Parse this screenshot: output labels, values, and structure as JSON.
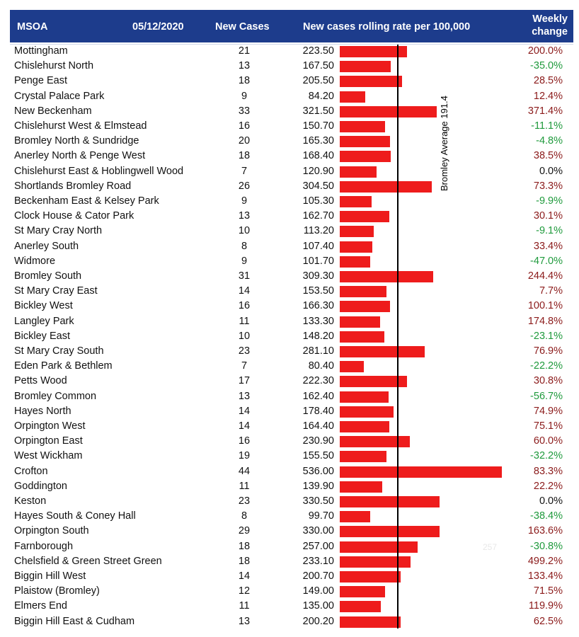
{
  "header": {
    "msoa": "MSOA",
    "date": "05/12/2020",
    "new_cases": "New Cases",
    "rate": "New cases rolling rate per 100,000",
    "weekly": "Weekly\nchange"
  },
  "colors": {
    "header_bg": "#1d3c8c",
    "bar": "#ee1c1c",
    "increase": "#8b1a1a",
    "decrease": "#1f9a3c"
  },
  "chart_data": {
    "type": "bar",
    "orientation": "horizontal",
    "reference_line": {
      "label": "Bromley Average 191.4",
      "value": 191.4
    },
    "stray_label": "257",
    "xlim": [
      0,
      540
    ],
    "columns": [
      "MSOA",
      "New Cases",
      "New cases rolling rate per 100,000",
      "Weekly change"
    ],
    "rows": [
      {
        "name": "Mottingham",
        "cases": "21",
        "rate": "223.50",
        "change": "200.0%"
      },
      {
        "name": "Chislehurst North",
        "cases": "13",
        "rate": "167.50",
        "change": "-35.0%"
      },
      {
        "name": "Penge East",
        "cases": "18",
        "rate": "205.50",
        "change": "28.5%"
      },
      {
        "name": "Crystal Palace Park",
        "cases": "9",
        "rate": "84.20",
        "change": "12.4%"
      },
      {
        "name": "New Beckenham",
        "cases": "33",
        "rate": "321.50",
        "change": "371.4%"
      },
      {
        "name": "Chislehurst West & Elmstead",
        "cases": "16",
        "rate": "150.70",
        "change": "-11.1%"
      },
      {
        "name": "Bromley North & Sundridge",
        "cases": "20",
        "rate": "165.30",
        "change": "-4.8%"
      },
      {
        "name": "Anerley North & Penge West",
        "cases": "18",
        "rate": "168.40",
        "change": "38.5%"
      },
      {
        "name": "Chislehurst East & Hoblingwell Wood",
        "cases": "7",
        "rate": "120.90",
        "change": "0.0%"
      },
      {
        "name": "Shortlands Bromley Road",
        "cases": "26",
        "rate": "304.50",
        "change": "73.3%"
      },
      {
        "name": "Beckenham East & Kelsey Park",
        "cases": "9",
        "rate": "105.30",
        "change": "-9.9%"
      },
      {
        "name": "Clock House & Cator Park",
        "cases": "13",
        "rate": "162.70",
        "change": "30.1%"
      },
      {
        "name": "St Mary Cray North",
        "cases": "10",
        "rate": "113.20",
        "change": "-9.1%"
      },
      {
        "name": "Anerley South",
        "cases": "8",
        "rate": "107.40",
        "change": "33.4%"
      },
      {
        "name": "Widmore",
        "cases": "9",
        "rate": "101.70",
        "change": "-47.0%"
      },
      {
        "name": "Bromley South",
        "cases": "31",
        "rate": "309.30",
        "change": "244.4%"
      },
      {
        "name": "St Mary Cray East",
        "cases": "14",
        "rate": "153.50",
        "change": "7.7%"
      },
      {
        "name": "Bickley West",
        "cases": "16",
        "rate": "166.30",
        "change": "100.1%"
      },
      {
        "name": "Langley Park",
        "cases": "11",
        "rate": "133.30",
        "change": "174.8%"
      },
      {
        "name": "Bickley East",
        "cases": "10",
        "rate": "148.20",
        "change": "-23.1%"
      },
      {
        "name": "St Mary Cray South",
        "cases": "23",
        "rate": "281.10",
        "change": "76.9%"
      },
      {
        "name": "Eden Park & Bethlem",
        "cases": "7",
        "rate": "80.40",
        "change": "-22.2%"
      },
      {
        "name": "Petts Wood",
        "cases": "17",
        "rate": "222.30",
        "change": "30.8%"
      },
      {
        "name": "Bromley Common",
        "cases": "13",
        "rate": "162.40",
        "change": "-56.7%"
      },
      {
        "name": "Hayes North",
        "cases": "14",
        "rate": "178.40",
        "change": "74.9%"
      },
      {
        "name": "Orpington West",
        "cases": "14",
        "rate": "164.40",
        "change": "75.1%"
      },
      {
        "name": "Orpington East",
        "cases": "16",
        "rate": "230.90",
        "change": "60.0%"
      },
      {
        "name": "West Wickham",
        "cases": "19",
        "rate": "155.50",
        "change": "-32.2%"
      },
      {
        "name": "Crofton",
        "cases": "44",
        "rate": "536.00",
        "change": "83.3%"
      },
      {
        "name": "Goddington",
        "cases": "11",
        "rate": "139.90",
        "change": "22.2%"
      },
      {
        "name": "Keston",
        "cases": "23",
        "rate": "330.50",
        "change": "0.0%"
      },
      {
        "name": "Hayes South & Coney Hall",
        "cases": "8",
        "rate": "99.70",
        "change": "-38.4%"
      },
      {
        "name": "Orpington South",
        "cases": "29",
        "rate": "330.00",
        "change": "163.6%"
      },
      {
        "name": "Farnborough",
        "cases": "18",
        "rate": "257.00",
        "change": "-30.8%"
      },
      {
        "name": "Chelsfield & Green Street Green",
        "cases": "18",
        "rate": "233.10",
        "change": "499.2%"
      },
      {
        "name": "Biggin Hill West",
        "cases": "14",
        "rate": "200.70",
        "change": "133.4%"
      },
      {
        "name": "Plaistow (Bromley)",
        "cases": "12",
        "rate": "149.00",
        "change": "71.5%"
      },
      {
        "name": "Elmers End",
        "cases": "11",
        "rate": "135.00",
        "change": "119.9%"
      },
      {
        "name": "Biggin Hill East & Cudham",
        "cases": "13",
        "rate": "200.20",
        "change": "62.5%"
      }
    ]
  }
}
